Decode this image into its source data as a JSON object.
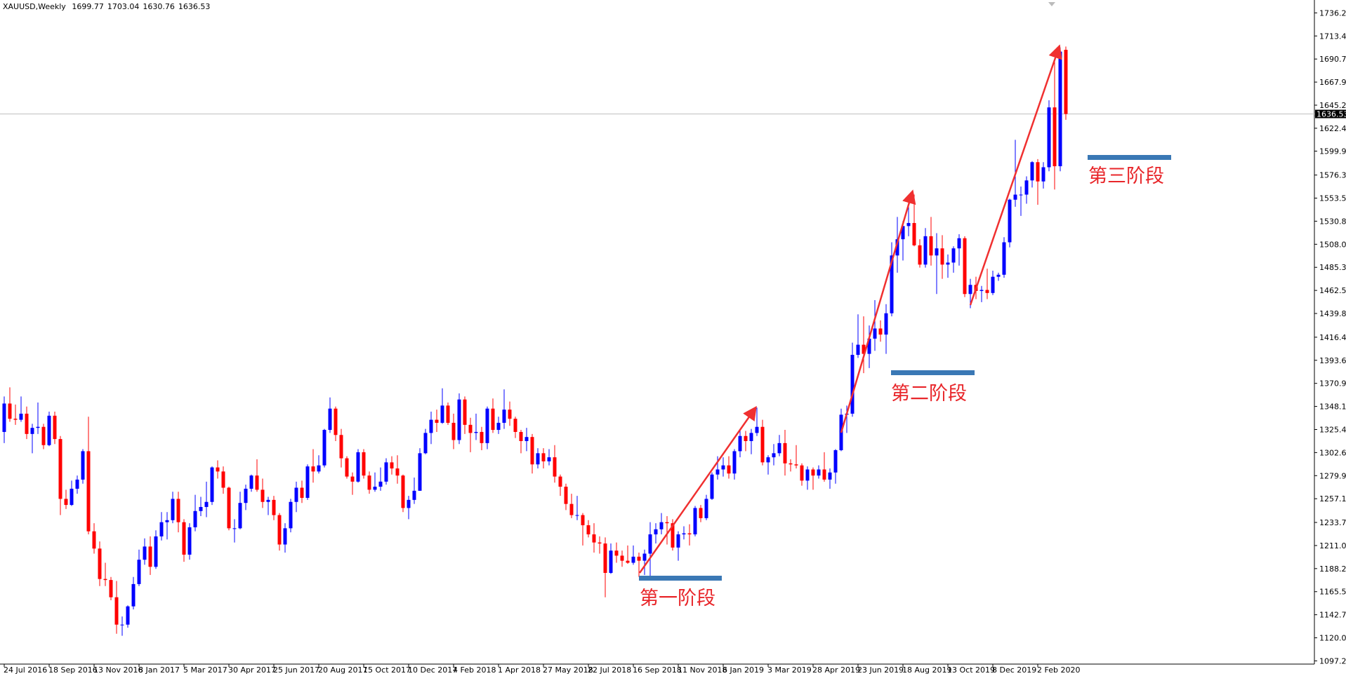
{
  "chart_data": {
    "type": "candlestick",
    "title": "XAUUSD,Weekly",
    "up_color": "#0000ff",
    "down_color": "#ff0000",
    "xlim": [
      -0.75,
      233.25
    ],
    "ylim": [
      1094.1,
      1748.9
    ],
    "xticks": [
      {
        "value": 0,
        "label": "24 Jul 2016"
      },
      {
        "value": 8,
        "label": "18 Sep 2016"
      },
      {
        "value": 16,
        "label": "13 Nov 2016"
      },
      {
        "value": 24,
        "label": "8 Jan 2017"
      },
      {
        "value": 32,
        "label": "5 Mar 2017"
      },
      {
        "value": 40,
        "label": "30 Apr 2017"
      },
      {
        "value": 48,
        "label": "25 Jun 2017"
      },
      {
        "value": 56,
        "label": "20 Aug 2017"
      },
      {
        "value": 64,
        "label": "15 Oct 2017"
      },
      {
        "value": 72,
        "label": "10 Dec 2017"
      },
      {
        "value": 80,
        "label": "4 Feb 2018"
      },
      {
        "value": 88,
        "label": "1 Apr 2018"
      },
      {
        "value": 96,
        "label": "27 May 2018"
      },
      {
        "value": 104,
        "label": "22 Jul 2018"
      },
      {
        "value": 112,
        "label": "16 Sep 2018"
      },
      {
        "value": 120,
        "label": "11 Nov 2018"
      },
      {
        "value": 128,
        "label": "6 Jan 2019"
      },
      {
        "value": 136,
        "label": "3 Mar 2019"
      },
      {
        "value": 144,
        "label": "28 Apr 2019"
      },
      {
        "value": 152,
        "label": "23 Jun 2019"
      },
      {
        "value": 160,
        "label": "18 Aug 2019"
      },
      {
        "value": 168,
        "label": "13 Oct 2019"
      },
      {
        "value": 176,
        "label": "8 Dec 2019"
      },
      {
        "value": 184,
        "label": "2 Feb 2020"
      }
    ],
    "yticks": [
      1097.25,
      {
        "value": 1120,
        "label": "1120.00"
      },
      1142.75,
      {
        "value": 1165.5,
        "label": "1165.50"
      },
      1188.25,
      {
        "value": 1211,
        "label": "1211.00"
      },
      1233.75,
      1257.15,
      {
        "value": 1279.9,
        "label": "1279.90"
      },
      1302.65,
      {
        "value": 1325.4,
        "label": "1325.40"
      },
      1348.15,
      {
        "value": 1370.9,
        "label": "1370.90"
      },
      1393.65,
      {
        "value": 1416.4,
        "label": "1416.40"
      },
      {
        "value": 1439.8,
        "label": "1439.80"
      },
      1462.55,
      {
        "value": 1485.3,
        "label": "1485.30"
      },
      1508.05,
      {
        "value": 1530.8,
        "label": "1530.80"
      },
      1553.55,
      {
        "value": 1576.3,
        "label": "1576.30"
      },
      {
        "value": 1599.9,
        "label": "1599.90"
      },
      1622.45,
      {
        "value": 1645.2,
        "label": "1645.20"
      },
      1667.95,
      {
        "value": 1690.7,
        "label": "1690.70"
      },
      1713.45,
      {
        "value": 1736.2,
        "label": "1736.20"
      }
    ],
    "last_price": 1636.53,
    "annotations": [
      "第一阶段",
      "第二阶段",
      "第三阶段"
    ],
    "ohlc": [
      [
        1323,
        1358,
        1312,
        1351
      ],
      [
        1351,
        1367,
        1333,
        1336
      ],
      [
        1336,
        1350,
        1330,
        1335
      ],
      [
        1335,
        1358,
        1333,
        1341
      ],
      [
        1341,
        1348,
        1316,
        1321
      ],
      [
        1321,
        1331,
        1302,
        1327
      ],
      [
        1327,
        1352,
        1321,
        1328
      ],
      [
        1328,
        1331,
        1306,
        1310
      ],
      [
        1310,
        1343,
        1309,
        1339
      ],
      [
        1339,
        1343,
        1311,
        1316
      ],
      [
        1316,
        1319,
        1241,
        1257
      ],
      [
        1257,
        1266,
        1247,
        1251
      ],
      [
        1251,
        1275,
        1250,
        1267
      ],
      [
        1267,
        1280,
        1262,
        1276
      ],
      [
        1276,
        1306,
        1272,
        1304
      ],
      [
        1304,
        1338,
        1222,
        1225
      ],
      [
        1225,
        1233,
        1203,
        1208
      ],
      [
        1208,
        1215,
        1171,
        1178
      ],
      [
        1178,
        1194,
        1171,
        1177
      ],
      [
        1177,
        1180,
        1157,
        1160
      ],
      [
        1160,
        1176,
        1124,
        1133
      ],
      [
        1133,
        1141,
        1122,
        1133
      ],
      [
        1133,
        1152,
        1130,
        1151
      ],
      [
        1151,
        1180,
        1148,
        1173
      ],
      [
        1173,
        1207,
        1171,
        1197
      ],
      [
        1197,
        1218,
        1192,
        1210
      ],
      [
        1210,
        1220,
        1182,
        1190
      ],
      [
        1190,
        1226,
        1188,
        1220
      ],
      [
        1220,
        1244,
        1216,
        1234
      ],
      [
        1234,
        1244,
        1217,
        1236
      ],
      [
        1236,
        1264,
        1233,
        1257
      ],
      [
        1257,
        1264,
        1224,
        1234
      ],
      [
        1234,
        1237,
        1195,
        1202
      ],
      [
        1202,
        1233,
        1197,
        1229
      ],
      [
        1229,
        1261,
        1225,
        1245
      ],
      [
        1245,
        1259,
        1240,
        1249
      ],
      [
        1249,
        1274,
        1239,
        1254
      ],
      [
        1254,
        1289,
        1251,
        1288
      ],
      [
        1288,
        1295,
        1277,
        1284
      ],
      [
        1284,
        1289,
        1262,
        1268
      ],
      [
        1268,
        1269,
        1226,
        1228
      ],
      [
        1228,
        1237,
        1214,
        1228
      ],
      [
        1228,
        1264,
        1227,
        1253
      ],
      [
        1253,
        1271,
        1246,
        1267
      ],
      [
        1267,
        1281,
        1264,
        1280
      ],
      [
        1280,
        1296,
        1264,
        1266
      ],
      [
        1266,
        1277,
        1248,
        1254
      ],
      [
        1254,
        1259,
        1241,
        1256
      ],
      [
        1256,
        1260,
        1236,
        1241
      ],
      [
        1241,
        1243,
        1206,
        1212
      ],
      [
        1212,
        1233,
        1204,
        1228
      ],
      [
        1228,
        1257,
        1224,
        1254
      ],
      [
        1254,
        1274,
        1244,
        1268
      ],
      [
        1268,
        1275,
        1253,
        1258
      ],
      [
        1258,
        1291,
        1256,
        1289
      ],
      [
        1289,
        1306,
        1273,
        1284
      ],
      [
        1284,
        1300,
        1282,
        1290
      ],
      [
        1290,
        1326,
        1288,
        1325
      ],
      [
        1325,
        1357,
        1322,
        1346
      ],
      [
        1346,
        1348,
        1314,
        1320
      ],
      [
        1320,
        1326,
        1288,
        1297
      ],
      [
        1297,
        1299,
        1277,
        1279
      ],
      [
        1279,
        1283,
        1261,
        1274
      ],
      [
        1274,
        1306,
        1273,
        1303
      ],
      [
        1303,
        1306,
        1277,
        1280
      ],
      [
        1280,
        1284,
        1262,
        1266
      ],
      [
        1266,
        1283,
        1264,
        1269
      ],
      [
        1269,
        1288,
        1265,
        1274
      ],
      [
        1274,
        1297,
        1271,
        1293
      ],
      [
        1293,
        1299,
        1281,
        1287
      ],
      [
        1287,
        1300,
        1272,
        1280
      ],
      [
        1280,
        1281,
        1244,
        1248
      ],
      [
        1248,
        1260,
        1237,
        1256
      ],
      [
        1256,
        1278,
        1252,
        1265
      ],
      [
        1265,
        1307,
        1265,
        1302
      ],
      [
        1302,
        1326,
        1301,
        1322
      ],
      [
        1322,
        1343,
        1311,
        1335
      ],
      [
        1335,
        1345,
        1323,
        1332
      ],
      [
        1332,
        1366,
        1331,
        1349
      ],
      [
        1349,
        1352,
        1330,
        1332
      ],
      [
        1332,
        1341,
        1306,
        1315
      ],
      [
        1315,
        1361,
        1311,
        1355
      ],
      [
        1355,
        1358,
        1321,
        1330
      ],
      [
        1330,
        1337,
        1303,
        1322
      ],
      [
        1322,
        1341,
        1315,
        1323
      ],
      [
        1323,
        1328,
        1305,
        1312
      ],
      [
        1312,
        1348,
        1306,
        1346
      ],
      [
        1346,
        1356,
        1322,
        1325
      ],
      [
        1325,
        1338,
        1321,
        1332
      ],
      [
        1332,
        1365,
        1326,
        1345
      ],
      [
        1345,
        1353,
        1329,
        1336
      ],
      [
        1336,
        1338,
        1317,
        1323
      ],
      [
        1323,
        1325,
        1302,
        1314
      ],
      [
        1314,
        1327,
        1304,
        1318
      ],
      [
        1318,
        1321,
        1282,
        1291
      ],
      [
        1291,
        1307,
        1287,
        1302
      ],
      [
        1302,
        1307,
        1287,
        1294
      ],
      [
        1294,
        1306,
        1290,
        1298
      ],
      [
        1298,
        1310,
        1273,
        1279
      ],
      [
        1279,
        1281,
        1260,
        1269
      ],
      [
        1269,
        1272,
        1246,
        1252
      ],
      [
        1252,
        1262,
        1238,
        1241
      ],
      [
        1241,
        1260,
        1236,
        1241
      ],
      [
        1241,
        1243,
        1211,
        1231
      ],
      [
        1231,
        1236,
        1219,
        1222
      ],
      [
        1222,
        1233,
        1204,
        1214
      ],
      [
        1214,
        1220,
        1203,
        1213
      ],
      [
        1213,
        1219,
        1160,
        1184
      ],
      [
        1184,
        1213,
        1183,
        1206
      ],
      [
        1206,
        1214,
        1194,
        1201
      ],
      [
        1201,
        1206,
        1190,
        1196
      ],
      [
        1196,
        1211,
        1193,
        1194
      ],
      [
        1194,
        1211,
        1192,
        1200
      ],
      [
        1200,
        1204,
        1180,
        1196
      ],
      [
        1196,
        1207,
        1182,
        1203
      ],
      [
        1203,
        1234,
        1181,
        1222
      ],
      [
        1222,
        1233,
        1213,
        1227
      ],
      [
        1227,
        1243,
        1222,
        1234
      ],
      [
        1234,
        1240,
        1212,
        1233
      ],
      [
        1233,
        1237,
        1206,
        1209
      ],
      [
        1209,
        1225,
        1196,
        1222
      ],
      [
        1222,
        1230,
        1217,
        1223
      ],
      [
        1223,
        1232,
        1211,
        1222
      ],
      [
        1222,
        1250,
        1220,
        1248
      ],
      [
        1248,
        1251,
        1234,
        1238
      ],
      [
        1238,
        1261,
        1236,
        1257
      ],
      [
        1257,
        1283,
        1256,
        1281
      ],
      [
        1281,
        1299,
        1276,
        1286
      ],
      [
        1286,
        1298,
        1279,
        1290
      ],
      [
        1290,
        1299,
        1277,
        1282
      ],
      [
        1282,
        1306,
        1276,
        1304
      ],
      [
        1304,
        1326,
        1298,
        1319
      ],
      [
        1319,
        1324,
        1304,
        1314
      ],
      [
        1314,
        1326,
        1301,
        1322
      ],
      [
        1322,
        1347,
        1319,
        1328
      ],
      [
        1328,
        1335,
        1290,
        1293
      ],
      [
        1293,
        1300,
        1281,
        1298
      ],
      [
        1298,
        1311,
        1290,
        1302
      ],
      [
        1302,
        1320,
        1299,
        1312
      ],
      [
        1312,
        1325,
        1280,
        1292
      ],
      [
        1292,
        1296,
        1284,
        1291
      ],
      [
        1291,
        1310,
        1287,
        1290
      ],
      [
        1290,
        1292,
        1270,
        1275
      ],
      [
        1275,
        1289,
        1266,
        1286
      ],
      [
        1286,
        1288,
        1266,
        1280
      ],
      [
        1280,
        1290,
        1277,
        1286
      ],
      [
        1286,
        1303,
        1274,
        1276
      ],
      [
        1276,
        1287,
        1267,
        1283
      ],
      [
        1283,
        1306,
        1272,
        1305
      ],
      [
        1305,
        1346,
        1304,
        1340
      ],
      [
        1340,
        1349,
        1322,
        1341
      ],
      [
        1341,
        1411,
        1338,
        1399
      ],
      [
        1399,
        1439,
        1396,
        1409
      ],
      [
        1409,
        1437,
        1381,
        1400
      ],
      [
        1400,
        1428,
        1386,
        1415
      ],
      [
        1415,
        1453,
        1403,
        1425
      ],
      [
        1425,
        1433,
        1412,
        1419
      ],
      [
        1419,
        1449,
        1400,
        1440
      ],
      [
        1440,
        1510,
        1437,
        1497
      ],
      [
        1497,
        1535,
        1480,
        1513
      ],
      [
        1513,
        1531,
        1492,
        1526
      ],
      [
        1526,
        1555,
        1516,
        1529
      ],
      [
        1529,
        1557,
        1506,
        1507
      ],
      [
        1507,
        1513,
        1485,
        1488
      ],
      [
        1488,
        1524,
        1485,
        1516
      ],
      [
        1516,
        1535,
        1487,
        1497
      ],
      [
        1497,
        1519,
        1459,
        1504
      ],
      [
        1504,
        1517,
        1474,
        1488
      ],
      [
        1488,
        1498,
        1475,
        1490
      ],
      [
        1490,
        1506,
        1480,
        1504
      ],
      [
        1504,
        1518,
        1487,
        1514
      ],
      [
        1514,
        1516,
        1456,
        1459
      ],
      [
        1459,
        1474,
        1445,
        1468
      ],
      [
        1468,
        1476,
        1454,
        1462
      ],
      [
        1462,
        1467,
        1451,
        1463
      ],
      [
        1463,
        1484,
        1454,
        1460
      ],
      [
        1460,
        1482,
        1458,
        1476
      ],
      [
        1476,
        1480,
        1472,
        1478
      ],
      [
        1478,
        1515,
        1475,
        1510
      ],
      [
        1510,
        1553,
        1505,
        1552
      ],
      [
        1552,
        1611,
        1545,
        1557
      ],
      [
        1557,
        1565,
        1536,
        1557
      ],
      [
        1557,
        1575,
        1548,
        1571
      ],
      [
        1571,
        1590,
        1564,
        1589
      ],
      [
        1589,
        1592,
        1547,
        1570
      ],
      [
        1570,
        1589,
        1563,
        1584
      ],
      [
        1584,
        1650,
        1580,
        1643
      ],
      [
        1643,
        1689,
        1562,
        1585
      ],
      [
        1585,
        1702,
        1580,
        1698
      ],
      [
        1699.77,
        1703.04,
        1630.76,
        1636.53
      ]
    ]
  }
}
